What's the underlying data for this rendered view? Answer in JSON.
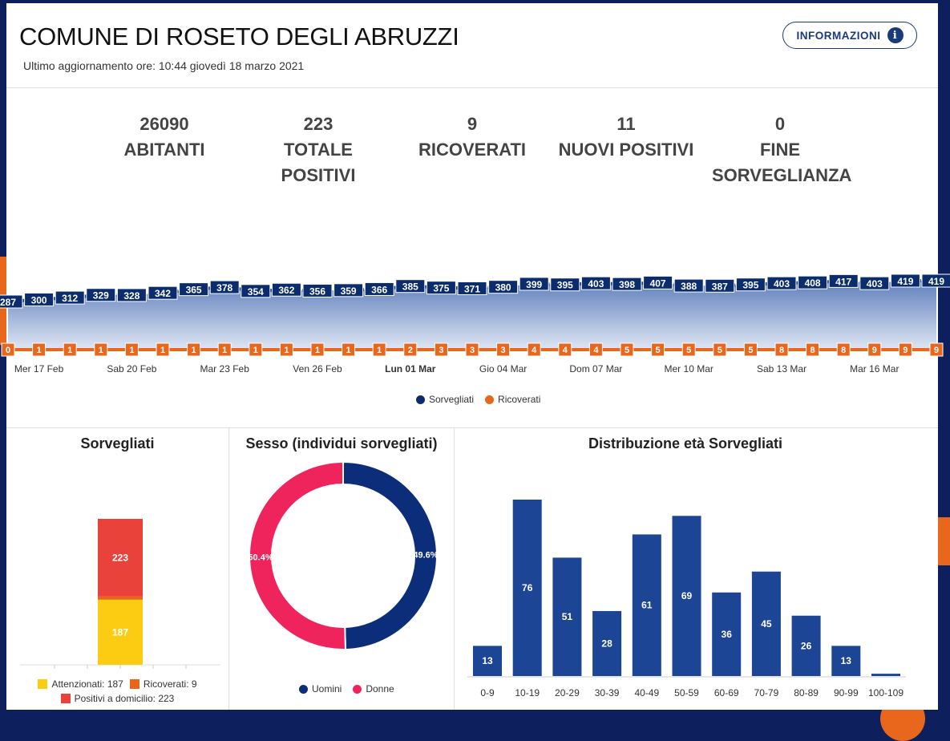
{
  "header": {
    "title": "COMUNE DI ROSETO DEGLI ABRUZZI",
    "updated": "Ultimo aggiornamento ore: 10:44 giovedì 18 marzo 2021",
    "info_button": "INFORMAZIONI",
    "info_icon": "i"
  },
  "stats": [
    {
      "value": "26090",
      "label": "ABITANTI"
    },
    {
      "value": "223",
      "label": "TOTALE POSITIVI"
    },
    {
      "value": "9",
      "label": "RICOVERATI"
    },
    {
      "value": "11",
      "label": "NUOVI POSITIVI"
    },
    {
      "value": "0",
      "label": "FINE SORVEGLIANZA"
    }
  ],
  "colors": {
    "navy": "#0b2d6e",
    "orange": "#e8671c",
    "red": "#e8423a",
    "yellow": "#fbcc12",
    "pink": "#f0245c",
    "bar": "#1c4595"
  },
  "chart_data": [
    {
      "type": "line",
      "title": "",
      "x_tick_labels": [
        "Mer 17 Feb",
        "Sab 20 Feb",
        "Mar 23 Feb",
        "Ven 26 Feb",
        "Lun 01 Mar",
        "Gio 04 Mar",
        "Dom 07 Mar",
        "Mer 10 Mar",
        "Sab 13 Mar",
        "Mar 16 Mar"
      ],
      "x_start": "16 Feb",
      "x_end": "18 Mar",
      "series": [
        {
          "name": "Sorvegliati",
          "color": "#0b2d6e",
          "values": [
            287,
            300,
            312,
            329,
            328,
            342,
            365,
            378,
            354,
            362,
            356,
            359,
            366,
            385,
            375,
            371,
            380,
            399,
            395,
            403,
            398,
            407,
            388,
            387,
            395,
            403,
            408,
            417,
            403,
            419,
            419
          ]
        },
        {
          "name": "Ricoverati",
          "color": "#e8671c",
          "values": [
            0,
            1,
            1,
            1,
            1,
            1,
            1,
            1,
            1,
            1,
            1,
            1,
            1,
            2,
            3,
            3,
            3,
            4,
            4,
            4,
            5,
            5,
            5,
            5,
            5,
            8,
            8,
            8,
            9,
            9,
            9
          ]
        }
      ],
      "legend": [
        "Sorvegliati",
        "Ricoverati"
      ],
      "legend_position": "bottom"
    },
    {
      "type": "bar",
      "title": "Sorvegliati",
      "stacked": true,
      "series": [
        {
          "name": "Attenzionati",
          "value": 187,
          "color": "#fbcc12",
          "legend": "Attenzionati: 187"
        },
        {
          "name": "Ricoverati",
          "value": 9,
          "color": "#e8671c",
          "legend": "Ricoverati: 9"
        },
        {
          "name": "Positivi a domicilio",
          "value": 223,
          "color": "#e8423a",
          "legend": "Positivi a domicilio: 223"
        }
      ]
    },
    {
      "type": "pie",
      "title": "Sesso (individui sorvegliati)",
      "slices": [
        {
          "name": "Uomini",
          "value": 49.6,
          "label": "49.6%",
          "color": "#0b2d7a"
        },
        {
          "name": "Donne",
          "value": 50.4,
          "label": "50.4%",
          "color": "#f0245c"
        }
      ]
    },
    {
      "type": "bar",
      "title": "Distribuzione età Sorvegliati",
      "categories": [
        "0-9",
        "10-19",
        "20-29",
        "30-39",
        "40-49",
        "50-59",
        "60-69",
        "70-79",
        "80-89",
        "90-99",
        "100-109"
      ],
      "values": [
        13,
        76,
        51,
        28,
        61,
        69,
        36,
        45,
        26,
        13,
        1
      ],
      "labels": [
        "13",
        "76",
        "51",
        "28",
        "61",
        "69",
        "36",
        "45",
        "26",
        "13",
        ""
      ]
    }
  ]
}
